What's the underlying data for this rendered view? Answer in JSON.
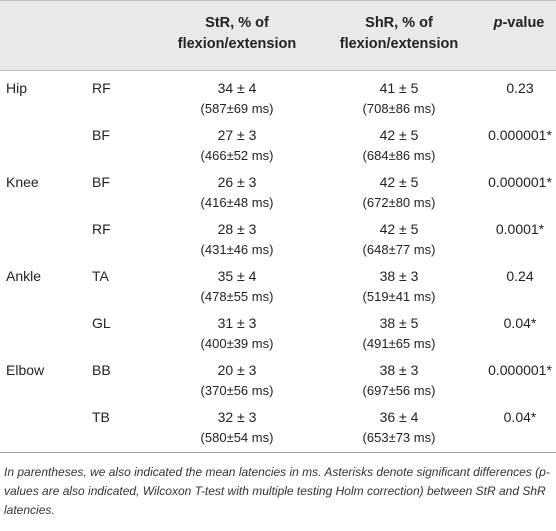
{
  "header": {
    "col_str": "StR, % of flexion/extension",
    "col_shr": "ShR, % of flexion/extension",
    "col_p_italic": "p",
    "col_p_rest": "-value"
  },
  "rows": [
    {
      "joint": "Hip",
      "muscle": "RF",
      "str": "34 ± 4",
      "str_lat": "(587±69 ms)",
      "shr": "41 ± 5",
      "shr_lat": "(708±86 ms)",
      "p": "0.23"
    },
    {
      "joint": "",
      "muscle": "BF",
      "str": "27 ± 3",
      "str_lat": "(466±52 ms)",
      "shr": "42 ± 5",
      "shr_lat": "(684±86 ms)",
      "p": "0.000001*"
    },
    {
      "joint": "Knee",
      "muscle": "BF",
      "str": "26 ± 3",
      "str_lat": "(416±48 ms)",
      "shr": "42 ± 5",
      "shr_lat": "(672±80 ms)",
      "p": "0.000001*"
    },
    {
      "joint": "",
      "muscle": "RF",
      "str": "28 ± 3",
      "str_lat": "(431±46 ms)",
      "shr": "42 ± 5",
      "shr_lat": "(648±77 ms)",
      "p": "0.0001*"
    },
    {
      "joint": "Ankle",
      "muscle": "TA",
      "str": "35 ± 4",
      "str_lat": "(478±55 ms)",
      "shr": "38 ± 3",
      "shr_lat": "(519±41 ms)",
      "p": "0.24"
    },
    {
      "joint": "",
      "muscle": "GL",
      "str": "31 ± 3",
      "str_lat": "(400±39 ms)",
      "shr": "38 ± 5",
      "shr_lat": "(491±65 ms)",
      "p": "0.04*"
    },
    {
      "joint": "Elbow",
      "muscle": "BB",
      "str": "20 ± 3",
      "str_lat": "(370±56 ms)",
      "shr": "38 ± 3",
      "shr_lat": "(697±56 ms)",
      "p": "0.000001*"
    },
    {
      "joint": "",
      "muscle": "TB",
      "str": "32 ± 3",
      "str_lat": "(580±54 ms)",
      "shr": "36 ± 4",
      "shr_lat": "(653±73 ms)",
      "p": "0.04*"
    }
  ],
  "footnote": "In parentheses, we also indicated the mean latencies in ms. Asterisks denote significant differences (p-values are also indicated, Wilcoxon T-test with multiple testing Holm correction) between StR and ShR latencies."
}
